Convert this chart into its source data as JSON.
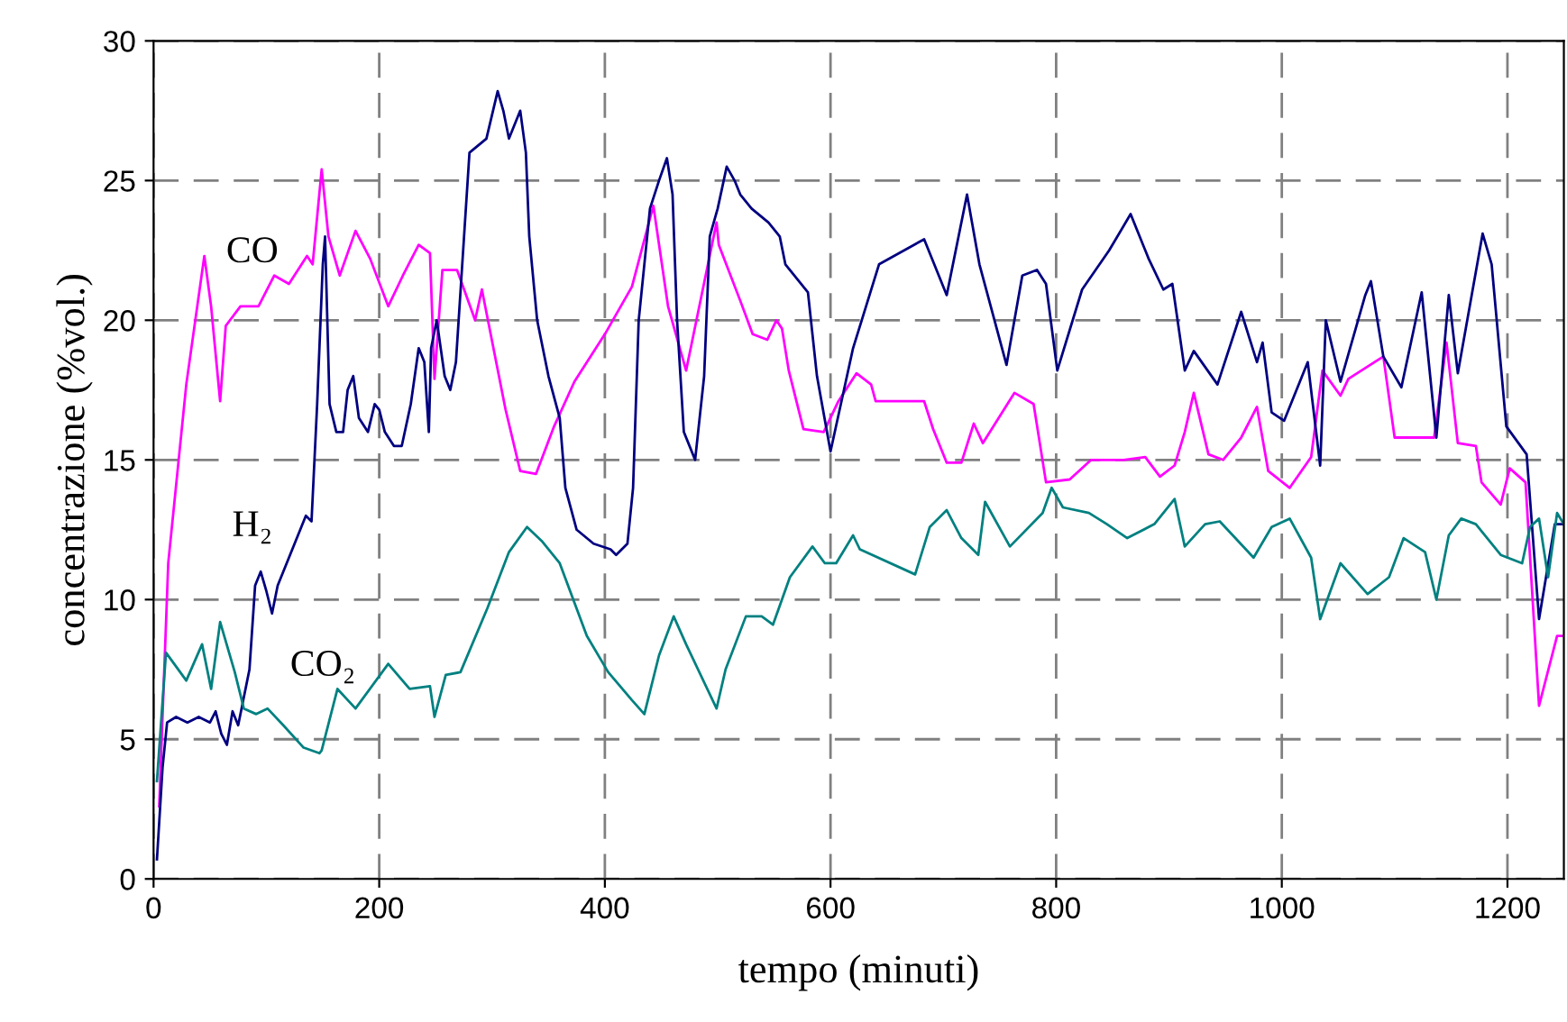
{
  "chart_data": {
    "type": "line",
    "xlabel": "tempo (minuti)",
    "ylabel": "concentrazione (%vol.)",
    "xlim": [
      0,
      1250
    ],
    "xticks": [
      0,
      200,
      400,
      600,
      800,
      1000,
      1200
    ],
    "ylim": [
      0,
      30
    ],
    "yticks": [
      0,
      5,
      10,
      15,
      20,
      25,
      30
    ],
    "grid": true,
    "legend": false,
    "line_style": "solid",
    "marker": "none",
    "series": [
      {
        "name": "CO",
        "color": "#ff00ff",
        "x": [
          5,
          13,
          29,
          45,
          51,
          59,
          64,
          77,
          93,
          107,
          120,
          136,
          141,
          149,
          155,
          165,
          179,
          192,
          208,
          221,
          235,
          245,
          249,
          256,
          269,
          285,
          291,
          312,
          325,
          339,
          355,
          373,
          400,
          424,
          443,
          456,
          472,
          499,
          501,
          520,
          531,
          544,
          552,
          557,
          563,
          576,
          594,
          607,
          623,
          636,
          640,
          683,
          691,
          703,
          716,
          727,
          735,
          763,
          780,
          791,
          812,
          831,
          860,
          879,
          892,
          905,
          914,
          922,
          935,
          948,
          964,
          978,
          988,
          1007,
          1026,
          1036,
          1052,
          1059,
          1090,
          1100,
          1116,
          1135,
          1146,
          1156,
          1172,
          1177,
          1194,
          1202,
          1216,
          1228,
          1244,
          1250
        ],
        "values": [
          2.6,
          11.3,
          17.7,
          22.3,
          20.5,
          17.1,
          19.8,
          20.5,
          20.5,
          21.6,
          21.3,
          22.3,
          22,
          25.4,
          23,
          21.6,
          23.2,
          22.2,
          20.5,
          21.6,
          22.7,
          22.4,
          17.9,
          21.8,
          21.8,
          20,
          21.1,
          16.8,
          14.6,
          14.5,
          16.2,
          17.8,
          19.5,
          21.2,
          24.1,
          20.5,
          18.2,
          23.5,
          22.7,
          20.7,
          19.5,
          19.3,
          20,
          19.7,
          18.2,
          16.1,
          16,
          17.1,
          18.1,
          17.7,
          17.1,
          17.1,
          16.1,
          14.9,
          14.9,
          16.3,
          15.6,
          17.4,
          17,
          14.2,
          14.3,
          15,
          15,
          15.1,
          14.4,
          14.8,
          16,
          17.4,
          15.2,
          15,
          15.8,
          16.9,
          14.6,
          14,
          15.1,
          18.2,
          17.3,
          17.9,
          18.7,
          15.8,
          15.8,
          15.8,
          19.2,
          15.6,
          15.5,
          14.2,
          13.4,
          14.7,
          14.2,
          6.2,
          8.7,
          8.7
        ]
      },
      {
        "name": "H₂",
        "color": "#000080",
        "x": [
          3,
          8,
          12,
          20,
          30,
          40,
          50,
          55,
          60,
          65,
          70,
          75,
          80,
          85,
          90,
          95,
          100,
          105,
          110,
          115,
          120,
          125,
          130,
          135,
          140,
          145,
          150,
          152,
          156,
          162,
          168,
          172,
          177,
          182,
          190,
          196,
          200,
          205,
          213,
          220,
          228,
          235,
          240,
          244,
          246,
          251,
          258,
          263,
          268,
          280,
          295,
          305,
          310,
          315,
          325,
          330,
          333,
          340,
          350,
          360,
          365,
          375,
          390,
          405,
          410,
          420,
          425,
          430,
          440,
          448,
          455,
          460,
          464,
          470,
          480,
          488,
          493,
          500,
          508,
          515,
          520,
          530,
          545,
          555,
          560,
          570,
          580,
          588,
          600,
          620,
          643,
          683,
          703,
          721,
          732,
          756,
          770,
          783,
          791,
          801,
          823,
          847,
          866,
          882,
          895,
          903,
          914,
          922,
          943,
          964,
          978,
          983,
          991,
          1002,
          1023,
          1034,
          1039,
          1052,
          1074,
          1079,
          1090,
          1106,
          1124,
          1137,
          1148,
          1156,
          1178,
          1186,
          1199,
          1217,
          1228,
          1242,
          1250
        ],
        "values": [
          0.7,
          4,
          5.6,
          5.8,
          5.6,
          5.8,
          5.6,
          6,
          5.2,
          4.8,
          6,
          5.5,
          6.5,
          7.5,
          10.5,
          11,
          10.3,
          9.5,
          10.5,
          11,
          11.5,
          12,
          12.5,
          13,
          12.8,
          17,
          22,
          23,
          17,
          16,
          16,
          17.5,
          18,
          16.5,
          16,
          17,
          16.8,
          16,
          15.5,
          15.5,
          17,
          19,
          18.5,
          16,
          19,
          20,
          18,
          17.5,
          18.5,
          26,
          26.5,
          28.2,
          27.5,
          26.5,
          27.5,
          26,
          23,
          20,
          18,
          16.5,
          14,
          12.5,
          12,
          11.8,
          11.6,
          12,
          14,
          20,
          24,
          25,
          25.8,
          24.5,
          20,
          16,
          15,
          18,
          23,
          24,
          25.5,
          25,
          24.5,
          24,
          23.5,
          23,
          22,
          21.5,
          21,
          18,
          15.3,
          19,
          22,
          22.9,
          20.9,
          24.5,
          22,
          18.4,
          21.6,
          21.8,
          21.3,
          18.2,
          21.1,
          22.5,
          23.8,
          22.2,
          21.1,
          21.3,
          18.2,
          18.9,
          17.7,
          20.3,
          18.5,
          19.2,
          16.7,
          16.4,
          18.5,
          14.8,
          20,
          17.8,
          20.9,
          21.4,
          18.7,
          17.6,
          21,
          15.8,
          20.9,
          18.1,
          23.1,
          22,
          16.2,
          15.2,
          9.3,
          12.7,
          12.7
        ]
      },
      {
        "name": "CO₂",
        "color": "#008080",
        "x": [
          3,
          11,
          29,
          43,
          51,
          59,
          72,
          80,
          91,
          101,
          115,
          133,
          147,
          149,
          163,
          179,
          208,
          227,
          245,
          249,
          259,
          272,
          296,
          315,
          331,
          344,
          360,
          384,
          403,
          424,
          435,
          448,
          461,
          472,
          499,
          507,
          525,
          539,
          549,
          564,
          584,
          595,
          605,
          620,
          626,
          675,
          688,
          703,
          716,
          731,
          737,
          759,
          788,
          796,
          806,
          829,
          845,
          863,
          887,
          905,
          914,
          932,
          945,
          975,
          991,
          1007,
          1026,
          1034,
          1052,
          1076,
          1095,
          1108,
          1127,
          1137,
          1148,
          1159,
          1172,
          1194,
          1213,
          1220,
          1228,
          1236,
          1244,
          1250
        ],
        "values": [
          3.5,
          8.1,
          7.1,
          8.4,
          6.8,
          9.2,
          7.4,
          6.1,
          5.9,
          6.1,
          5.5,
          4.7,
          4.5,
          4.6,
          6.8,
          6.1,
          7.7,
          6.8,
          6.9,
          5.8,
          7.3,
          7.4,
          9.7,
          11.7,
          12.6,
          12.1,
          11.3,
          8.7,
          7.4,
          6.4,
          5.9,
          8,
          9.4,
          8.4,
          6.1,
          7.5,
          9.4,
          9.4,
          9.1,
          10.8,
          11.9,
          11.3,
          11.3,
          12.3,
          11.8,
          10.9,
          12.6,
          13.2,
          12.2,
          11.6,
          13.5,
          11.9,
          13.1,
          14,
          13.3,
          13.1,
          12.7,
          12.2,
          12.7,
          13.6,
          11.9,
          12.7,
          12.8,
          11.5,
          12.6,
          12.9,
          11.5,
          9.3,
          11.3,
          10.2,
          10.8,
          12.2,
          11.7,
          10,
          12.3,
          12.9,
          12.7,
          11.6,
          11.3,
          12.6,
          12.9,
          10.8,
          13.1,
          12.7
        ]
      }
    ]
  }
}
